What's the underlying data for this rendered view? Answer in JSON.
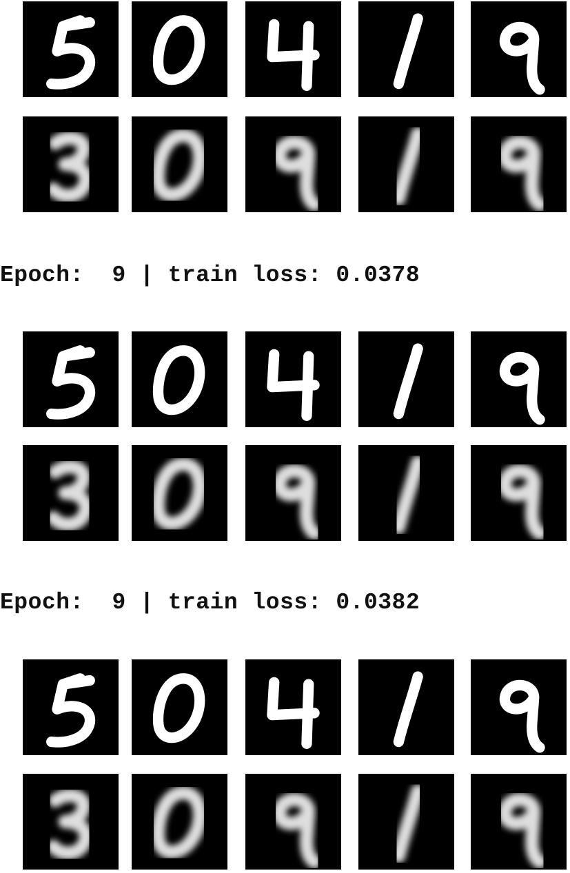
{
  "log_lines": [
    {
      "epoch_label": "Epoch:",
      "epoch": "9",
      "separator": "|",
      "loss_label": "train loss:",
      "loss": "0.0378"
    },
    {
      "epoch_label": "Epoch:",
      "epoch": "9",
      "separator": "|",
      "loss_label": "train loss:",
      "loss": "0.0382"
    }
  ],
  "groups": [
    {
      "original_digits": [
        "5",
        "0",
        "4",
        "1",
        "9"
      ],
      "reconstructed_digits": [
        "3",
        "0",
        "9",
        "1",
        "9"
      ]
    },
    {
      "original_digits": [
        "5",
        "0",
        "4",
        "1",
        "9"
      ],
      "reconstructed_digits": [
        "3",
        "0",
        "9",
        "1",
        "9"
      ]
    },
    {
      "original_digits": [
        "5",
        "0",
        "4",
        "1",
        "9"
      ],
      "reconstructed_digits": [
        "3",
        "0",
        "9",
        "1",
        "9"
      ]
    }
  ],
  "colors": {
    "background": "#ffffff",
    "tile": "#000000",
    "digit": "#ffffff",
    "text": "#111111"
  }
}
